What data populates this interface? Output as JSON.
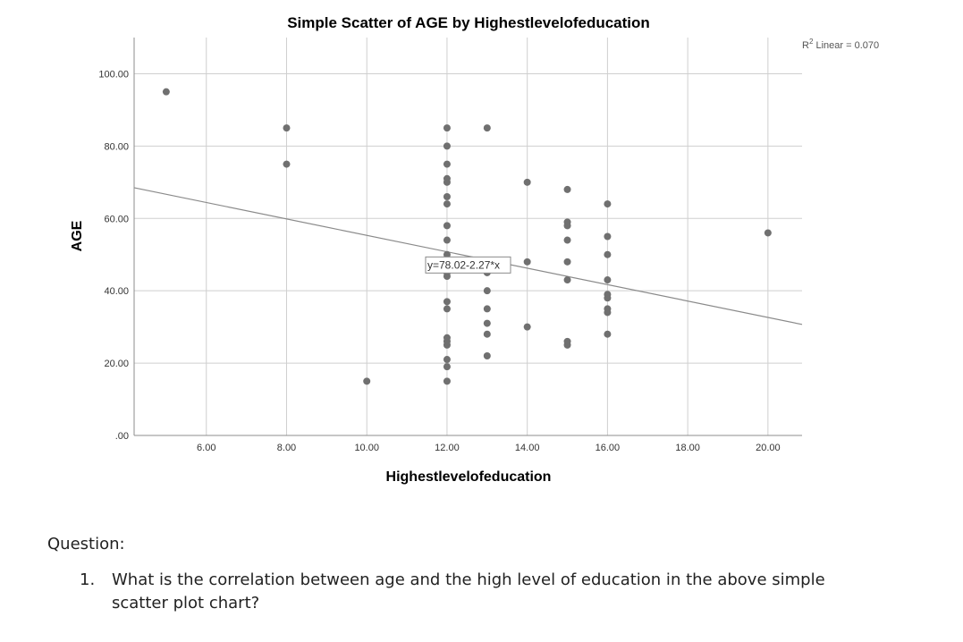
{
  "chart_data": {
    "type": "scatter",
    "title": "Simple Scatter of AGE by Highestlevelofeducation",
    "xlabel": "Highestlevelofeducation",
    "ylabel": "AGE",
    "xlim": [
      4.2,
      20.85
    ],
    "ylim": [
      0,
      110
    ],
    "x_ticks": [
      6,
      8,
      10,
      12,
      14,
      16,
      18,
      20
    ],
    "x_tick_labels": [
      "6.00",
      "8.00",
      "10.00",
      "12.00",
      "14.00",
      "16.00",
      "18.00",
      "20.00"
    ],
    "y_ticks": [
      0,
      20,
      40,
      60,
      80,
      100
    ],
    "y_tick_labels": [
      ".00",
      "20.00",
      "40.00",
      "60.00",
      "80.00",
      "100.00"
    ],
    "grid": true,
    "marker_color": "#707070",
    "line_color": "#8a8a8a",
    "points": [
      {
        "x": 5,
        "y": 95
      },
      {
        "x": 8,
        "y": 85
      },
      {
        "x": 8,
        "y": 75
      },
      {
        "x": 10,
        "y": 15
      },
      {
        "x": 12,
        "y": 85
      },
      {
        "x": 12,
        "y": 80
      },
      {
        "x": 12,
        "y": 75
      },
      {
        "x": 12,
        "y": 71
      },
      {
        "x": 12,
        "y": 70
      },
      {
        "x": 12,
        "y": 66
      },
      {
        "x": 12,
        "y": 64
      },
      {
        "x": 12,
        "y": 58
      },
      {
        "x": 12,
        "y": 54
      },
      {
        "x": 12,
        "y": 50
      },
      {
        "x": 12,
        "y": 47
      },
      {
        "x": 12,
        "y": 45
      },
      {
        "x": 12,
        "y": 44
      },
      {
        "x": 12,
        "y": 37
      },
      {
        "x": 12,
        "y": 35
      },
      {
        "x": 12,
        "y": 27
      },
      {
        "x": 12,
        "y": 26
      },
      {
        "x": 12,
        "y": 25
      },
      {
        "x": 12,
        "y": 21
      },
      {
        "x": 12,
        "y": 19
      },
      {
        "x": 12,
        "y": 15
      },
      {
        "x": 13,
        "y": 85
      },
      {
        "x": 13,
        "y": 45
      },
      {
        "x": 13,
        "y": 40
      },
      {
        "x": 13,
        "y": 35
      },
      {
        "x": 13,
        "y": 31
      },
      {
        "x": 13,
        "y": 28
      },
      {
        "x": 13,
        "y": 22
      },
      {
        "x": 14,
        "y": 70
      },
      {
        "x": 14,
        "y": 48
      },
      {
        "x": 14,
        "y": 30
      },
      {
        "x": 15,
        "y": 68
      },
      {
        "x": 15,
        "y": 59
      },
      {
        "x": 15,
        "y": 58
      },
      {
        "x": 15,
        "y": 54
      },
      {
        "x": 15,
        "y": 48
      },
      {
        "x": 15,
        "y": 43
      },
      {
        "x": 15,
        "y": 26
      },
      {
        "x": 15,
        "y": 25
      },
      {
        "x": 16,
        "y": 64
      },
      {
        "x": 16,
        "y": 55
      },
      {
        "x": 16,
        "y": 50
      },
      {
        "x": 16,
        "y": 43
      },
      {
        "x": 16,
        "y": 39
      },
      {
        "x": 16,
        "y": 38
      },
      {
        "x": 16,
        "y": 35
      },
      {
        "x": 16,
        "y": 34
      },
      {
        "x": 16,
        "y": 28
      },
      {
        "x": 20,
        "y": 56
      }
    ],
    "fit_line": {
      "intercept": 78.02,
      "slope": -2.27,
      "equation_label": "y=78.02-2.27*x",
      "r2_prefix": "R",
      "r2_sup": "2",
      "r2_suffix": " Linear = 0.070"
    }
  },
  "question": {
    "heading": "Question:",
    "items": [
      {
        "number": "1.",
        "text": "What is the correlation between age and the high level of education in the above simple scatter plot chart?"
      }
    ]
  }
}
